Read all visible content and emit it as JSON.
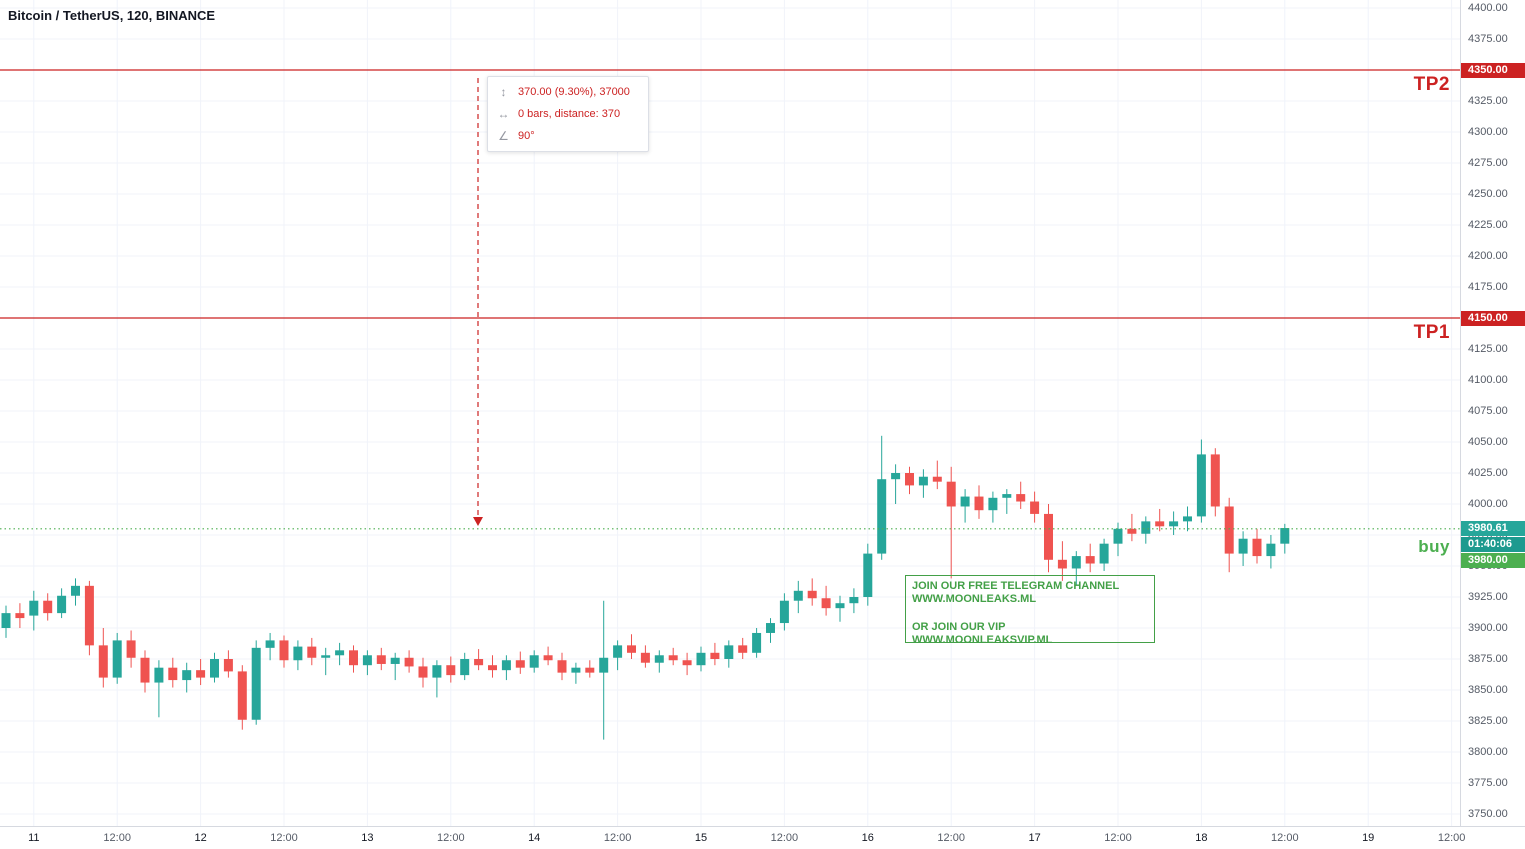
{
  "header": {
    "symbol_title": "Bitcoin / TetherUS, 120, BINANCE"
  },
  "colors": {
    "background": "#ffffff",
    "up": "#26a69a",
    "down": "#ef5350",
    "tp_line": "#cc2222",
    "buy_line": "#4caf50",
    "measure": "#cc2222",
    "tp_tag_bg": "#cc2222",
    "last_tag_bg": "#26a69a",
    "countdown_tag_bg": "#1d9a8f",
    "buy_tag_bg": "#4caf50",
    "promo": "#43a047",
    "grid": "#f0f3fa",
    "axis_text": "#555b66"
  },
  "levels": {
    "tp2": {
      "label": "TP2",
      "price": 4350,
      "tag": "4350.00"
    },
    "tp1": {
      "label": "TP1",
      "price": 4150,
      "tag": "4150.00"
    },
    "buy": {
      "label": "buy",
      "price": 3980,
      "tag": "3980.00"
    },
    "last": {
      "tag": "3980.61",
      "countdown": "01:40:06"
    }
  },
  "measure_tooltip": {
    "rows": [
      {
        "icon": "price-range-icon",
        "glyph": "↕",
        "text": "370.00 (9.30%), 37000"
      },
      {
        "icon": "bars-range-icon",
        "glyph": "↔",
        "text": "0 bars, distance: 370"
      },
      {
        "icon": "angle-icon",
        "glyph": "∠",
        "text": "90°"
      }
    ]
  },
  "promo_box": {
    "lines": [
      "JOIN OUR FREE TELEGRAM CHANNEL",
      "WWW.MOONLEAKS.ML",
      "OR JOIN OUR VIP",
      "WWW.MOONLEAKSVIP.ML"
    ]
  },
  "chart_data": {
    "type": "candlestick",
    "title": "Bitcoin / TetherUS, 120, BINANCE",
    "exchange": "BINANCE",
    "interval_minutes": 120,
    "ylim": [
      3750,
      4400
    ],
    "price_tick_step": 25,
    "grid": true,
    "last_price": 3980.61,
    "levels": {
      "tp2": 4350,
      "tp1": 4150,
      "buy": 3980
    },
    "price_axis_labels": [
      "4400.00",
      "4375.00",
      "4350.00",
      "4325.00",
      "4300.00",
      "4275.00",
      "4250.00",
      "4225.00",
      "4200.00",
      "4175.00",
      "4150.00",
      "4125.00",
      "4100.00",
      "4075.00",
      "4050.00",
      "4025.00",
      "4000.00",
      "3975.00",
      "3950.00",
      "3925.00",
      "3900.00",
      "3875.00",
      "3850.00",
      "3825.00",
      "3800.00",
      "3775.00",
      "3750.00"
    ],
    "time_axis_labels": [
      "11",
      "12:00",
      "12",
      "12:00",
      "13",
      "12:00",
      "14",
      "12:00",
      "15",
      "12:00",
      "16",
      "12:00",
      "17",
      "12:00",
      "18",
      "12:00",
      "19",
      "12:00"
    ],
    "candles_ohlc": [
      [
        3900,
        3918,
        3892,
        3912
      ],
      [
        3912,
        3920,
        3900,
        3908
      ],
      [
        3910,
        3930,
        3898,
        3922
      ],
      [
        3922,
        3928,
        3906,
        3912
      ],
      [
        3912,
        3932,
        3908,
        3926
      ],
      [
        3926,
        3940,
        3918,
        3934
      ],
      [
        3934,
        3938,
        3878,
        3886
      ],
      [
        3886,
        3900,
        3852,
        3860
      ],
      [
        3860,
        3896,
        3855,
        3890
      ],
      [
        3890,
        3898,
        3868,
        3876
      ],
      [
        3876,
        3882,
        3848,
        3856
      ],
      [
        3856,
        3874,
        3828,
        3868
      ],
      [
        3868,
        3876,
        3852,
        3858
      ],
      [
        3858,
        3872,
        3848,
        3866
      ],
      [
        3866,
        3875,
        3854,
        3860
      ],
      [
        3860,
        3880,
        3856,
        3875
      ],
      [
        3875,
        3882,
        3860,
        3865
      ],
      [
        3865,
        3870,
        3818,
        3826
      ],
      [
        3826,
        3890,
        3822,
        3884
      ],
      [
        3884,
        3896,
        3874,
        3890
      ],
      [
        3890,
        3894,
        3868,
        3874
      ],
      [
        3874,
        3890,
        3866,
        3885
      ],
      [
        3885,
        3892,
        3870,
        3876
      ],
      [
        3876,
        3884,
        3862,
        3878
      ],
      [
        3878,
        3888,
        3870,
        3882
      ],
      [
        3882,
        3886,
        3864,
        3870
      ],
      [
        3870,
        3882,
        3862,
        3878
      ],
      [
        3878,
        3884,
        3866,
        3871
      ],
      [
        3871,
        3880,
        3858,
        3876
      ],
      [
        3876,
        3882,
        3864,
        3869
      ],
      [
        3869,
        3876,
        3852,
        3860
      ],
      [
        3860,
        3874,
        3844,
        3870
      ],
      [
        3870,
        3877,
        3856,
        3862
      ],
      [
        3862,
        3880,
        3858,
        3875
      ],
      [
        3875,
        3883,
        3866,
        3870
      ],
      [
        3870,
        3878,
        3860,
        3866
      ],
      [
        3866,
        3878,
        3858,
        3874
      ],
      [
        3874,
        3881,
        3863,
        3868
      ],
      [
        3868,
        3882,
        3864,
        3878
      ],
      [
        3878,
        3885,
        3870,
        3874
      ],
      [
        3874,
        3880,
        3858,
        3864
      ],
      [
        3864,
        3872,
        3855,
        3868
      ],
      [
        3868,
        3874,
        3860,
        3864
      ],
      [
        3864,
        3922,
        3810,
        3876
      ],
      [
        3876,
        3890,
        3866,
        3886
      ],
      [
        3886,
        3895,
        3875,
        3880
      ],
      [
        3880,
        3886,
        3868,
        3872
      ],
      [
        3872,
        3882,
        3864,
        3878
      ],
      [
        3878,
        3884,
        3870,
        3874
      ],
      [
        3874,
        3880,
        3862,
        3870
      ],
      [
        3870,
        3885,
        3865,
        3880
      ],
      [
        3880,
        3888,
        3870,
        3875
      ],
      [
        3875,
        3890,
        3868,
        3886
      ],
      [
        3886,
        3892,
        3875,
        3880
      ],
      [
        3880,
        3900,
        3876,
        3896
      ],
      [
        3896,
        3908,
        3888,
        3904
      ],
      [
        3904,
        3928,
        3898,
        3922
      ],
      [
        3922,
        3938,
        3912,
        3930
      ],
      [
        3930,
        3940,
        3918,
        3924
      ],
      [
        3924,
        3934,
        3910,
        3916
      ],
      [
        3916,
        3926,
        3905,
        3920
      ],
      [
        3920,
        3932,
        3912,
        3925
      ],
      [
        3925,
        3968,
        3918,
        3960
      ],
      [
        3960,
        4055,
        3955,
        4020
      ],
      [
        4020,
        4032,
        4000,
        4025
      ],
      [
        4025,
        4030,
        4008,
        4015
      ],
      [
        4015,
        4028,
        4005,
        4022
      ],
      [
        4022,
        4035,
        4012,
        4018
      ],
      [
        4018,
        4030,
        3940,
        3998
      ],
      [
        3998,
        4012,
        3985,
        4006
      ],
      [
        4006,
        4015,
        3988,
        3995
      ],
      [
        3995,
        4010,
        3985,
        4005
      ],
      [
        4005,
        4012,
        3992,
        4008
      ],
      [
        4008,
        4018,
        3996,
        4002
      ],
      [
        4002,
        4010,
        3985,
        3992
      ],
      [
        3992,
        4000,
        3945,
        3955
      ],
      [
        3955,
        3970,
        3938,
        3948
      ],
      [
        3948,
        3962,
        3935,
        3958
      ],
      [
        3958,
        3968,
        3945,
        3952
      ],
      [
        3952,
        3972,
        3946,
        3968
      ],
      [
        3968,
        3985,
        3958,
        3980
      ],
      [
        3980,
        3992,
        3970,
        3976
      ],
      [
        3976,
        3990,
        3968,
        3986
      ],
      [
        3986,
        3996,
        3978,
        3982
      ],
      [
        3982,
        3994,
        3975,
        3986
      ],
      [
        3986,
        3998,
        3978,
        3990
      ],
      [
        3990,
        4052,
        3985,
        4040
      ],
      [
        4040,
        4045,
        3990,
        3998
      ],
      [
        3998,
        4005,
        3945,
        3960
      ],
      [
        3960,
        3978,
        3950,
        3972
      ],
      [
        3972,
        3980,
        3952,
        3958
      ],
      [
        3958,
        3975,
        3948,
        3968
      ],
      [
        3968,
        3984,
        3960,
        3980.61
      ]
    ]
  }
}
